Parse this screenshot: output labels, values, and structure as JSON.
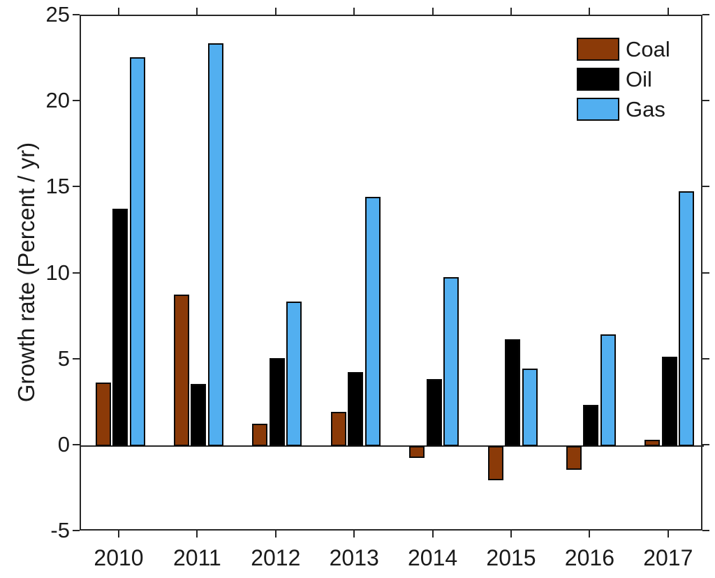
{
  "chart_data": {
    "type": "bar",
    "title": "",
    "ylabel": "Growth rate (Percent / yr)",
    "xlabel": "",
    "ylim": [
      -5,
      25
    ],
    "yticks": [
      -5,
      0,
      5,
      10,
      15,
      20,
      25
    ],
    "ytick_labels": [
      "-5",
      "0",
      "5",
      "10",
      "15",
      "20",
      "25"
    ],
    "categories": [
      "2010",
      "2011",
      "2012",
      "2013",
      "2014",
      "2015",
      "2016",
      "2017"
    ],
    "series": [
      {
        "name": "Coal",
        "color": "#8B3A08",
        "values": [
          3.7,
          8.8,
          1.3,
          2.0,
          -0.7,
          -2.0,
          -1.4,
          0.35
        ]
      },
      {
        "name": "Oil",
        "color": "#000000",
        "values": [
          13.8,
          3.6,
          5.1,
          4.3,
          3.9,
          6.2,
          2.4,
          5.2
        ]
      },
      {
        "name": "Gas",
        "color": "#52AFF0",
        "values": [
          22.6,
          23.4,
          8.4,
          14.5,
          9.8,
          4.5,
          6.5,
          14.8
        ]
      }
    ],
    "legend_position": "top-right",
    "grid": false,
    "axis_color": "#262626",
    "bar_edge_color": "#0a0a0a",
    "background_color": "#ffffff"
  }
}
